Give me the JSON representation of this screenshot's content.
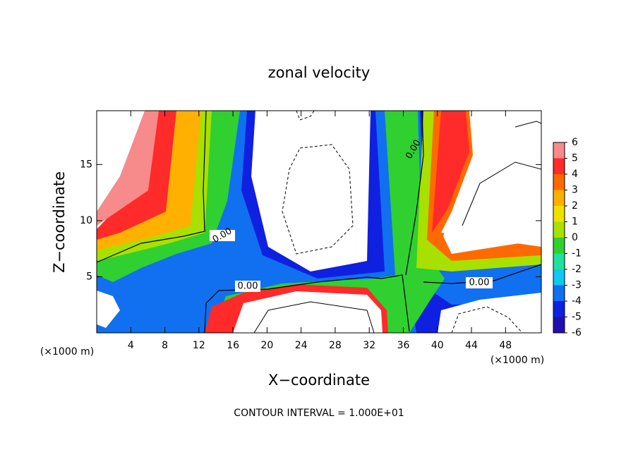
{
  "chart_data": {
    "type": "contour",
    "title": "zonal velocity",
    "x_label": "X−coordinate",
    "y_label": "Z−coordinate",
    "unit_labels": [
      "(×1000 m)",
      "(×1000 m)"
    ],
    "xlim": [
      0,
      52.2
    ],
    "ylim": [
      0,
      19.8
    ],
    "xticks": [
      4,
      8,
      12,
      16,
      20,
      24,
      28,
      32,
      36,
      40,
      44,
      48
    ],
    "yticks": [
      5,
      10,
      15
    ],
    "contour_labels": [
      "0.00",
      "0.00",
      "0.00",
      "0.00"
    ],
    "footnote": "CONTOUR INTERVAL = 1.000E+01",
    "colorbar": {
      "levels": [
        6,
        5,
        4,
        3,
        2,
        1,
        0,
        -1,
        -2,
        -3,
        -4,
        -5,
        -6
      ],
      "colors": [
        "#f78a8a",
        "#ff2a2a",
        "#ff6a00",
        "#ffb000",
        "#f0e000",
        "#a8e000",
        "#30d030",
        "#20e0a0",
        "#10c8f0",
        "#1070f0",
        "#1020e0",
        "#2010b0"
      ]
    }
  }
}
